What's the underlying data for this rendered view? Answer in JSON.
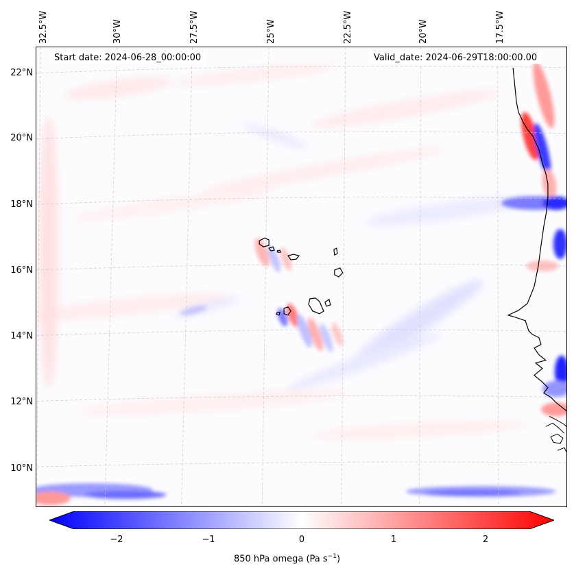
{
  "map": {
    "start_label": "Start date: 2024-06-28_00:00:00",
    "valid_label": "Valid_date: 2024-06-29T18:00:00.00",
    "lon_labels": [
      "32.5°W",
      "30°W",
      "27.5°W",
      "25°W",
      "22.5°W",
      "20°W",
      "17.5°W"
    ],
    "lat_labels": [
      "22°N",
      "20°N",
      "18°N",
      "16°N",
      "14°N",
      "12°N",
      "10°N"
    ],
    "gridlines": "dashed",
    "coastlines": "black"
  },
  "colorbar": {
    "label_text": "850 hPa omega (Pa s",
    "label_exp": "−1",
    "label_close": ")",
    "ticks": [
      "−2",
      "−1",
      "0",
      "1",
      "2"
    ],
    "range": [
      -2.7,
      2.7
    ],
    "colormap": "bwr",
    "low_color": "#0000ff",
    "mid_color": "#ffffff",
    "high_color": "#ff0000",
    "extend": "both"
  }
}
